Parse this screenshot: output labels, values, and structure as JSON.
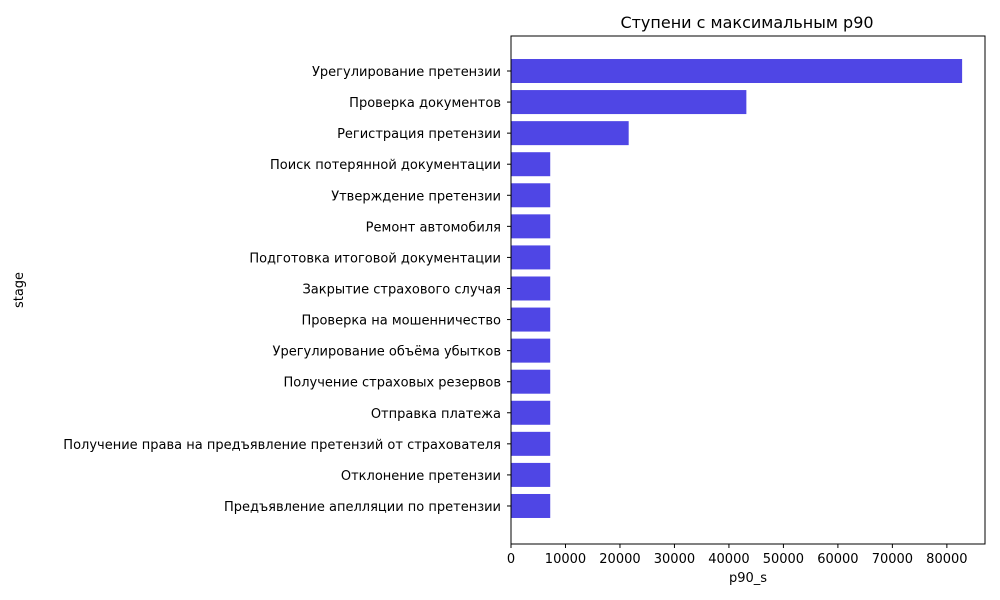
{
  "chart_data": {
    "type": "bar",
    "orientation": "horizontal",
    "title": "Ступени с максимальным p90",
    "xlabel": "p90_s",
    "ylabel": "stage",
    "xlim": [
      0,
      87000
    ],
    "xticks": [
      0,
      10000,
      20000,
      30000,
      40000,
      50000,
      60000,
      70000,
      80000
    ],
    "grid": false,
    "bar_color": "#4f46e5",
    "categories": [
      "Урегулирование претензии",
      "Проверка документов",
      "Регистрация претензии",
      "Поиск потерянной документации",
      "Утверждение претензии",
      "Ремонт автомобиля",
      "Подготовка итоговой документации",
      "Закрытие страхового случая",
      "Проверка на мошенничество",
      "Урегулирование объёма убытков",
      "Получение страховых резервов",
      "Отправка платежа",
      "Получение права на предъявление претензий от страхователя",
      "Отклонение претензии",
      "Предъявление апелляции по претензии"
    ],
    "values": [
      82800,
      43200,
      21600,
      7200,
      7200,
      7200,
      7200,
      7200,
      7200,
      7200,
      7200,
      7200,
      7200,
      7200,
      7200
    ]
  }
}
